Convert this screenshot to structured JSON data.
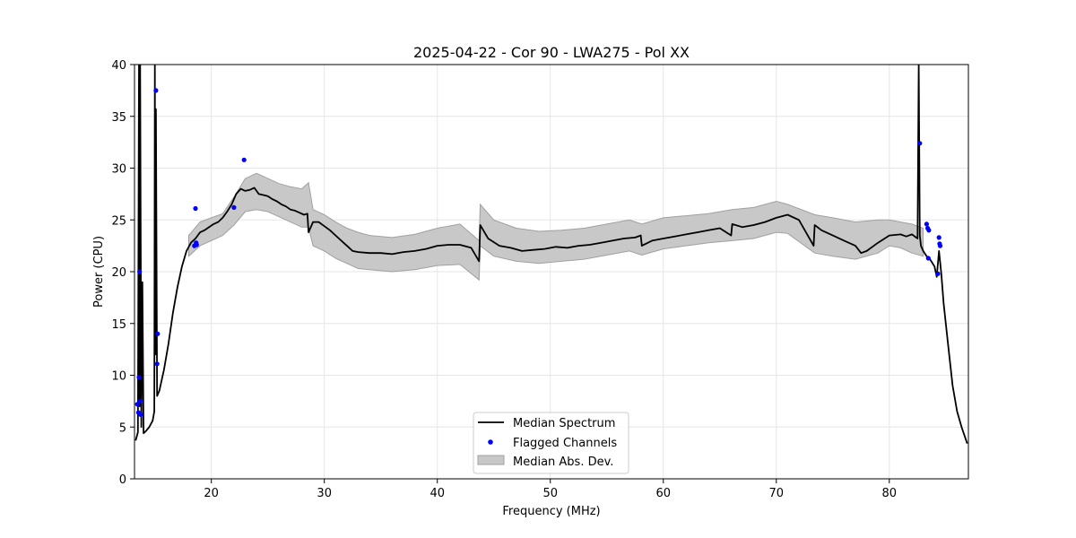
{
  "chart_data": {
    "type": "line",
    "title": "2025-04-22 - Cor 90 - LWA275 - Pol XX",
    "xlabel": "Frequency (MHz)",
    "ylabel": "Power (CPU)",
    "xlim": [
      13.2,
      87.0
    ],
    "ylim": [
      0,
      40
    ],
    "xticks": [
      20,
      30,
      40,
      50,
      60,
      70,
      80
    ],
    "yticks": [
      0,
      5,
      10,
      15,
      20,
      25,
      30,
      35,
      40
    ],
    "grid": true,
    "legend_position": "lower center",
    "legend": [
      "Median Spectrum",
      "Flagged Channels",
      "Median Abs. Dev."
    ],
    "colors": {
      "median": "#000000",
      "flagged": "#0000ff",
      "band_fill": "#c8c8c8",
      "band_edge": "#a0a0a0",
      "grid": "#e6e6e6"
    },
    "series": [
      {
        "name": "Median Spectrum",
        "style": "line",
        "x": [
          13.3,
          13.5,
          13.6,
          13.65,
          13.7,
          13.8,
          13.9,
          14.0,
          14.2,
          14.5,
          14.8,
          14.95,
          15.0,
          15.05,
          15.1,
          15.2,
          15.4,
          15.8,
          16.2,
          16.6,
          17.0,
          17.4,
          17.8,
          18.2,
          18.6,
          19.0,
          19.4,
          19.8,
          20.2,
          20.6,
          21.0,
          21.4,
          21.8,
          22.2,
          22.6,
          23.0,
          23.4,
          23.8,
          24.2,
          24.6,
          25.0,
          25.4,
          25.8,
          26.2,
          26.6,
          27.0,
          27.4,
          27.8,
          28.2,
          28.5,
          28.6,
          29.0,
          29.5,
          30.0,
          30.5,
          31.0,
          31.5,
          32.0,
          32.5,
          33.0,
          34.0,
          35.0,
          36.0,
          37.0,
          38.0,
          39.0,
          40.0,
          41.0,
          42.0,
          43.0,
          43.7,
          43.8,
          44.5,
          45.5,
          46.5,
          47.5,
          48.5,
          49.5,
          50.5,
          51.5,
          52.5,
          53.5,
          54.5,
          55.5,
          56.5,
          57.5,
          58.0,
          58.1,
          59.0,
          60.0,
          61.0,
          62.0,
          63.0,
          64.0,
          65.0,
          66.0,
          66.1,
          67.0,
          68.0,
          69.0,
          70.0,
          71.0,
          72.0,
          73.3,
          73.4,
          74.0,
          75.0,
          76.0,
          77.0,
          77.5,
          78.0,
          79.0,
          80.0,
          81.0,
          81.5,
          82.0,
          82.5,
          82.6,
          82.7,
          82.8,
          83.0,
          83.3,
          83.6,
          84.0,
          84.2,
          84.4,
          84.6,
          84.8,
          85.2,
          85.6,
          86.0,
          86.4,
          86.9
        ],
        "y": [
          3.7,
          4.5,
          40.0,
          7.0,
          40.0,
          5.0,
          19.0,
          4.4,
          4.6,
          5.0,
          5.6,
          6.5,
          40.0,
          12.0,
          35.7,
          8.0,
          8.5,
          10.5,
          13.0,
          16.0,
          18.5,
          20.5,
          22.0,
          22.8,
          23.2,
          23.8,
          24.0,
          24.3,
          24.6,
          24.8,
          25.2,
          25.8,
          26.5,
          27.5,
          28.0,
          27.8,
          27.9,
          28.1,
          27.5,
          27.4,
          27.3,
          27.0,
          26.8,
          26.5,
          26.3,
          26.0,
          25.9,
          25.7,
          25.5,
          25.6,
          23.8,
          24.8,
          24.8,
          24.4,
          24.0,
          23.5,
          23.0,
          22.5,
          22.0,
          21.9,
          21.8,
          21.8,
          21.7,
          21.9,
          22.0,
          22.2,
          22.5,
          22.6,
          22.6,
          22.3,
          21.0,
          24.5,
          23.2,
          22.5,
          22.3,
          22.0,
          22.1,
          22.2,
          22.4,
          22.3,
          22.5,
          22.6,
          22.8,
          23.0,
          23.2,
          23.3,
          23.5,
          22.5,
          23.0,
          23.2,
          23.4,
          23.6,
          23.8,
          24.0,
          24.2,
          23.5,
          24.6,
          24.3,
          24.5,
          24.8,
          25.2,
          25.5,
          25.0,
          22.5,
          24.5,
          24.0,
          23.5,
          23.0,
          22.5,
          21.8,
          22.0,
          22.8,
          23.5,
          23.6,
          23.4,
          23.6,
          23.2,
          40.0,
          23.5,
          22.5,
          22.0,
          21.5,
          21.2,
          20.5,
          19.5,
          22.0,
          19.8,
          17.0,
          13.0,
          9.0,
          6.5,
          5.0,
          3.4
        ]
      },
      {
        "name": "Flagged Channels",
        "style": "points",
        "x": [
          13.45,
          13.55,
          13.6,
          13.65,
          13.7,
          13.75,
          15.1,
          15.2,
          15.25,
          18.5,
          18.6,
          18.65,
          18.7,
          22.0,
          22.9,
          82.7,
          83.3,
          83.4,
          83.45,
          83.5,
          84.3,
          84.4,
          84.45,
          84.5
        ],
        "y": [
          7.2,
          6.4,
          9.8,
          20.0,
          7.5,
          6.2,
          37.5,
          11.1,
          14.0,
          22.5,
          26.1,
          22.8,
          22.6,
          26.2,
          30.8,
          32.4,
          24.6,
          24.2,
          21.3,
          24.0,
          19.8,
          23.3,
          22.7,
          22.5
        ]
      },
      {
        "name": "Median Abs. Dev.",
        "style": "band",
        "x": [
          18.0,
          19.0,
          20.0,
          21.0,
          22.0,
          23.0,
          24.0,
          25.0,
          26.0,
          27.0,
          28.0,
          28.6,
          29.0,
          30.0,
          31.0,
          32.0,
          33.0,
          34.0,
          36.0,
          38.0,
          40.0,
          42.0,
          43.7,
          43.8,
          45.0,
          47.0,
          49.0,
          51.0,
          53.0,
          55.0,
          57.0,
          58.1,
          60.0,
          62.0,
          64.0,
          66.1,
          68.0,
          70.0,
          71.0,
          73.4,
          75.0,
          77.0,
          79.0,
          80.0,
          81.0,
          82.0,
          83.0
        ],
        "lower": [
          21.5,
          22.5,
          23.0,
          23.5,
          24.5,
          25.8,
          26.0,
          25.8,
          25.3,
          24.8,
          24.3,
          24.3,
          22.5,
          22.0,
          21.3,
          20.8,
          20.3,
          20.2,
          20.0,
          20.2,
          20.6,
          20.7,
          19.2,
          22.5,
          21.5,
          21.0,
          20.8,
          21.0,
          21.2,
          21.6,
          22.0,
          21.6,
          22.2,
          22.5,
          22.8,
          23.0,
          23.2,
          23.8,
          23.7,
          21.8,
          21.5,
          21.2,
          21.8,
          22.5,
          22.3,
          21.8,
          21.5
        ],
        "upper": [
          23.5,
          24.8,
          25.2,
          25.6,
          27.2,
          29.0,
          29.5,
          29.0,
          28.5,
          28.2,
          28.0,
          28.6,
          26.0,
          25.5,
          24.8,
          24.2,
          23.8,
          23.5,
          23.3,
          23.6,
          24.2,
          24.6,
          23.0,
          26.5,
          25.0,
          24.2,
          23.9,
          24.0,
          24.2,
          24.6,
          25.0,
          24.6,
          25.2,
          25.4,
          25.6,
          26.0,
          26.2,
          26.8,
          26.5,
          25.5,
          25.2,
          24.8,
          25.0,
          25.0,
          24.8,
          24.6,
          24.2
        ]
      }
    ]
  }
}
